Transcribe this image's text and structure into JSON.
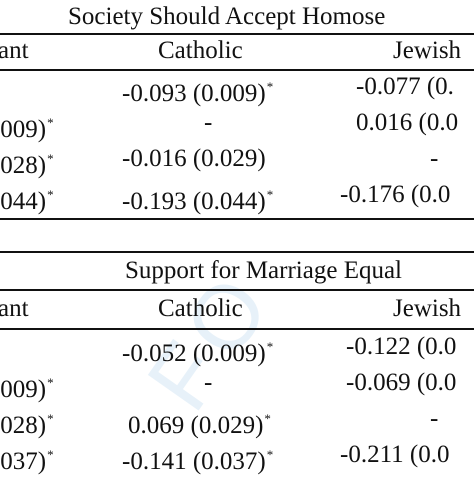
{
  "watermark": "FO",
  "panel1": {
    "title": "Society Should Accept Homose",
    "col_left": "ant",
    "col_catholic": "Catholic",
    "col_jewish": "Jewish",
    "rows": [
      {
        "left": "",
        "left_star": "",
        "catholic": "-0.093 (0.009)",
        "catholic_star": "*",
        "jewish": "-0.077 (0.",
        "jewish_star": ""
      },
      {
        "left": ".009)",
        "left_star": "*",
        "catholic": "-",
        "catholic_star": "",
        "jewish": "0.016 (0.0",
        "jewish_star": ""
      },
      {
        "left": ".028)",
        "left_star": "*",
        "catholic": "-0.016 (0.029)",
        "catholic_star": "",
        "jewish": "-",
        "jewish_star": ""
      },
      {
        "left": ".044)",
        "left_star": "*",
        "catholic": "-0.193 (0.044)",
        "catholic_star": "*",
        "jewish": "-0.176 (0.0",
        "jewish_star": ""
      }
    ]
  },
  "panel2": {
    "title": "Support for Marriage Equal",
    "col_left": "ant",
    "col_catholic": "Catholic",
    "col_jewish": "Jewish",
    "rows": [
      {
        "left": "",
        "left_star": "",
        "catholic": "-0.052 (0.009)",
        "catholic_star": "*",
        "jewish": "-0.122 (0.0",
        "jewish_star": ""
      },
      {
        "left": ".009)",
        "left_star": "*",
        "catholic": "-",
        "catholic_star": "",
        "jewish": "-0.069 (0.0",
        "jewish_star": ""
      },
      {
        "left": ".028)",
        "left_star": "*",
        "catholic": "0.069 (0.029)",
        "catholic_star": "*",
        "jewish": "-",
        "jewish_star": ""
      },
      {
        "left": ".037)",
        "left_star": "*",
        "catholic": "-0.141 (0.037)",
        "catholic_star": "*",
        "jewish": "-0.211 (0.0",
        "jewish_star": ""
      }
    ]
  }
}
